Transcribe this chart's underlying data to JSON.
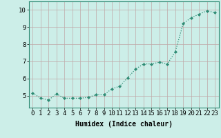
{
  "x": [
    0,
    1,
    2,
    3,
    4,
    5,
    6,
    7,
    8,
    9,
    10,
    11,
    12,
    13,
    14,
    15,
    16,
    17,
    18,
    19,
    20,
    21,
    22,
    23
  ],
  "y": [
    5.15,
    4.85,
    4.75,
    5.1,
    4.85,
    4.85,
    4.85,
    4.9,
    5.05,
    5.05,
    5.4,
    5.55,
    6.05,
    6.55,
    6.85,
    6.85,
    6.95,
    6.85,
    7.55,
    9.2,
    9.55,
    9.75,
    9.95,
    9.85
  ],
  "line_color": "#2e8b74",
  "marker": "D",
  "marker_size": 2.0,
  "bg_color": "#cceee8",
  "grid_color": "#c0a8a8",
  "xlabel": "Humidex (Indice chaleur)",
  "xlim": [
    -0.5,
    23.5
  ],
  "ylim": [
    4.3,
    10.5
  ],
  "yticks": [
    5,
    6,
    7,
    8,
    9,
    10
  ],
  "xtick_labels": [
    "0",
    "1",
    "2",
    "3",
    "4",
    "5",
    "6",
    "7",
    "8",
    "9",
    "10",
    "11",
    "12",
    "13",
    "14",
    "15",
    "16",
    "17",
    "18",
    "19",
    "20",
    "21",
    "22",
    "23"
  ],
  "xlabel_fontsize": 7,
  "tick_fontsize": 6.5
}
